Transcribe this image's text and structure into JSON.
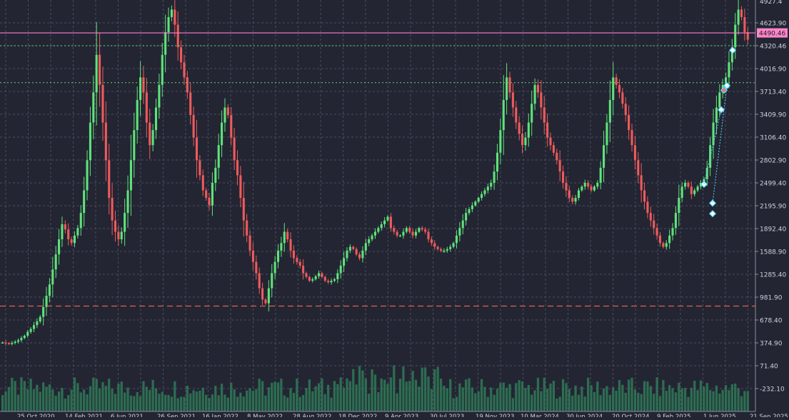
{
  "chart_data": {
    "type": "candlestick",
    "price_axis": {
      "min": -232.1,
      "max": 4927.4,
      "tick_labels": [
        "4623.90",
        "4320.46",
        "4016.90",
        "3713.40",
        "3409.90",
        "3106.40",
        "2802.90",
        "2499.40",
        "2195.90",
        "1892.40",
        "1588.90",
        "1285.40",
        "981.90",
        "678.40",
        "374.90",
        "71.40",
        "-232.10"
      ],
      "top_partial_label": "4927.4"
    },
    "date_axis": {
      "labels": [
        "25 Oct 2020",
        "14 Feb 2021",
        "6 Jun 2021",
        "26 Sep 2021",
        "16 Jan 2022",
        "8 May 2022",
        "28 Aug 2022",
        "18 Dec 2022",
        "9 Apr 2023",
        "30 Jul 2023",
        "19 Nov 2023",
        "10 Mar 2024",
        "30 Jun 2024",
        "20 Oct 2024",
        "9 Feb 2025",
        "1 Jun 2025",
        "21 Sep 2025"
      ]
    },
    "levels": {
      "current_price_line": 4490.46,
      "current_price_label": "4490.46",
      "dotted_green_1": 4320.46,
      "dotted_green_2": 3830,
      "support_dashed": 863
    },
    "price_path_weekly": [
      380,
      370,
      365,
      375,
      390,
      410,
      440,
      470,
      520,
      560,
      610,
      660,
      720,
      850,
      1000,
      1150,
      1350,
      1550,
      1750,
      1950,
      1880,
      1750,
      1700,
      1800,
      1900,
      2100,
      2400,
      2800,
      3300,
      3700,
      4200,
      3800,
      3300,
      2800,
      2300,
      2000,
      1850,
      1750,
      1850,
      2100,
      2400,
      2800,
      3200,
      3600,
      3900,
      3700,
      3300,
      3000,
      3200,
      3500,
      3800,
      4200,
      4500,
      4700,
      4800,
      4600,
      4300,
      4100,
      3900,
      3700,
      3400,
      3100,
      2800,
      2600,
      2400,
      2300,
      2200,
      2500,
      2700,
      3000,
      3300,
      3500,
      3400,
      3100,
      2800,
      2600,
      2300,
      2000,
      1800,
      1600,
      1450,
      1300,
      1100,
      950,
      900,
      1100,
      1300,
      1450,
      1600,
      1700,
      1850,
      1750,
      1600,
      1500,
      1450,
      1400,
      1300,
      1250,
      1200,
      1220,
      1260,
      1300,
      1250,
      1200,
      1180,
      1200,
      1220,
      1300,
      1400,
      1500,
      1600,
      1650,
      1620,
      1550,
      1500,
      1600,
      1700,
      1750,
      1800,
      1850,
      1900,
      1950,
      2000,
      2050,
      1900,
      1850,
      1800,
      1800,
      1850,
      1900,
      1850,
      1800,
      1850,
      1900,
      1880,
      1850,
      1750,
      1700,
      1650,
      1620,
      1600,
      1600,
      1620,
      1650,
      1700,
      1800,
      1900,
      2000,
      2100,
      2150,
      2200,
      2250,
      2300,
      2350,
      2400,
      2450,
      2500,
      2650,
      2900,
      3200,
      3600,
      3900,
      3700,
      3500,
      3300,
      3150,
      3000,
      3100,
      3300,
      3550,
      3800,
      3700,
      3500,
      3300,
      3100,
      3000,
      2900,
      2800,
      2650,
      2500,
      2400,
      2300,
      2250,
      2300,
      2400,
      2450,
      2500,
      2450,
      2400,
      2450,
      2500,
      2700,
      3000,
      3300,
      3600,
      3900,
      3800,
      3700,
      3550,
      3400,
      3200,
      3000,
      2800,
      2600,
      2400,
      2250,
      2100,
      2000,
      1900,
      1800,
      1700,
      1650,
      1700,
      1800,
      1900,
      2100,
      2300,
      2450,
      2500,
      2450,
      2350,
      2400,
      2450,
      2500,
      2550,
      2700,
      3000,
      3300,
      3500,
      3700,
      3800,
      3900,
      4100,
      4300,
      4600,
      4800,
      4700,
      4500,
      4400
    ],
    "signal_markers": [
      {
        "price": 2480,
        "kind": "buy"
      },
      {
        "price": 2230,
        "kind": "buy"
      },
      {
        "price": 2090,
        "kind": "buy"
      },
      {
        "price": 3470,
        "kind": "buy"
      },
      {
        "price": 3730,
        "kind": "sell"
      },
      {
        "price": 3790,
        "kind": "buy"
      },
      {
        "price": 4260,
        "kind": "buy"
      }
    ],
    "grid": true,
    "colors": {
      "background": "#232533",
      "grid": "#4a4d5e",
      "up_candle": "#5fe37a",
      "down_candle": "#ef5b5b",
      "volume": "#2f7a57",
      "price_line": "#ff7fd0",
      "label_bg": "#ff86c8",
      "dotted_green": "#6fcf7a",
      "support_dashed": "#e0644c",
      "axis_text": "#cfd2dc",
      "marker": "#5ad7ff"
    }
  }
}
